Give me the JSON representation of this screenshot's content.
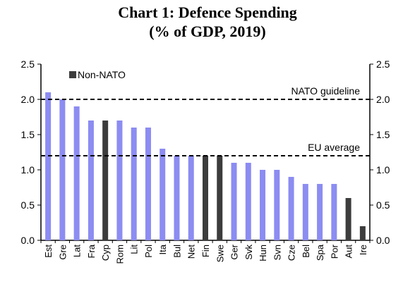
{
  "chart_data": {
    "type": "bar",
    "title_line1": "Chart 1: Defence Spending",
    "title_line2": "(% of GDP, 2019)",
    "categories": [
      "Est",
      "Gre",
      "Lat",
      "Fra",
      "Cyp",
      "Rom",
      "Lit",
      "Pol",
      "Ita",
      "Bul",
      "Net",
      "Fin",
      "Swe",
      "Ger",
      "Svk",
      "Hun",
      "Svn",
      "Cze",
      "Bel",
      "Spa",
      "Por",
      "Aut",
      "Ire"
    ],
    "values": [
      2.1,
      2.0,
      1.9,
      1.7,
      1.7,
      1.7,
      1.6,
      1.6,
      1.3,
      1.2,
      1.2,
      1.2,
      1.2,
      1.1,
      1.1,
      1.0,
      1.0,
      0.9,
      0.8,
      0.8,
      0.8,
      0.6,
      0.2
    ],
    "non_nato": [
      "Cyp",
      "Fin",
      "Swe",
      "Aut",
      "Ire"
    ],
    "colors": {
      "nato": "#8c8cf2",
      "non_nato": "#3c3c3c",
      "axis_text": "#000000"
    },
    "legend": {
      "label": "Non-NATO",
      "placement": "top-left"
    },
    "ylim": [
      0,
      2.5
    ],
    "yticks": [
      "0.0",
      "0.5",
      "1.0",
      "1.5",
      "2.0",
      "2.5"
    ],
    "reference_lines": [
      {
        "label": "NATO guideline",
        "value": 2.0
      },
      {
        "label": "EU average",
        "value": 1.2
      }
    ],
    "grid": false,
    "secondary_y_axis": true
  }
}
